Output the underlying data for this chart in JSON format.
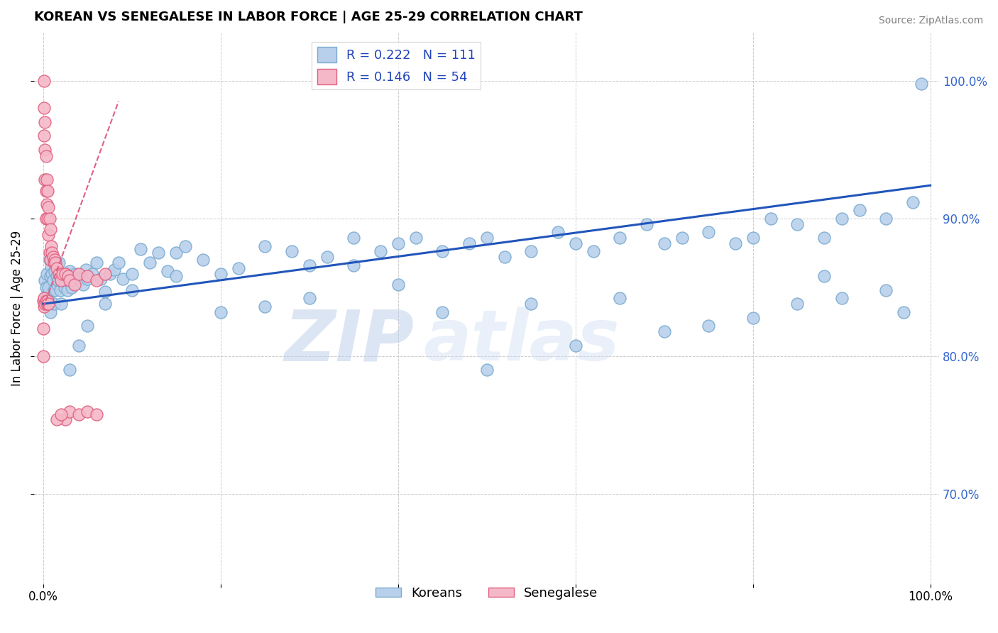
{
  "title": "KOREAN VS SENEGALESE IN LABOR FORCE | AGE 25-29 CORRELATION CHART",
  "source_text": "Source: ZipAtlas.com",
  "xlabel": "",
  "ylabel": "In Labor Force | Age 25-29",
  "xlim": [
    -0.01,
    1.01
  ],
  "ylim": [
    0.635,
    1.035
  ],
  "xticks": [
    0.0,
    0.2,
    0.4,
    0.6,
    0.8,
    1.0
  ],
  "xtick_labels": [
    "0.0%",
    "",
    "",
    "",
    "",
    "100.0%"
  ],
  "yticks": [
    0.7,
    0.8,
    0.9,
    1.0
  ],
  "ytick_labels": [
    "70.0%",
    "80.0%",
    "90.0%",
    "100.0%"
  ],
  "korean_color": "#b8d0eb",
  "senegalese_color": "#f5b8c8",
  "korean_edge_color": "#7aaad0",
  "senegalese_edge_color": "#e06080",
  "trend_korean_color": "#2255bb",
  "trend_senegalese_color": "#cc2244",
  "legend_R_korean": "R = 0.222",
  "legend_N_korean": "N = 111",
  "legend_R_senegalese": "R = 0.146",
  "legend_N_senegalese": "N = 54",
  "watermark_zip": "ZIP",
  "watermark_atlas": "atlas",
  "korean_trend_x": [
    0.0,
    1.0
  ],
  "korean_trend_y": [
    0.838,
    0.924
  ],
  "senegalese_trend_x": [
    0.0,
    0.085
  ],
  "senegalese_trend_y": [
    0.835,
    0.985
  ],
  "background_color": "#ffffff",
  "grid_color": "#cccccc",
  "korean_points_x": [
    0.002,
    0.003,
    0.004,
    0.005,
    0.006,
    0.007,
    0.008,
    0.009,
    0.01,
    0.011,
    0.012,
    0.013,
    0.014,
    0.015,
    0.016,
    0.017,
    0.018,
    0.019,
    0.02,
    0.022,
    0.024,
    0.025,
    0.027,
    0.028,
    0.03,
    0.032,
    0.034,
    0.036,
    0.04,
    0.042,
    0.045,
    0.048,
    0.05,
    0.055,
    0.06,
    0.065,
    0.07,
    0.075,
    0.08,
    0.085,
    0.09,
    0.1,
    0.11,
    0.12,
    0.13,
    0.14,
    0.15,
    0.16,
    0.18,
    0.2,
    0.22,
    0.25,
    0.28,
    0.3,
    0.32,
    0.35,
    0.38,
    0.4,
    0.42,
    0.45,
    0.48,
    0.5,
    0.52,
    0.55,
    0.58,
    0.6,
    0.62,
    0.65,
    0.68,
    0.7,
    0.72,
    0.75,
    0.78,
    0.8,
    0.82,
    0.85,
    0.88,
    0.9,
    0.92,
    0.95,
    0.98,
    0.005,
    0.008,
    0.012,
    0.02,
    0.03,
    0.04,
    0.05,
    0.07,
    0.1,
    0.15,
    0.2,
    0.25,
    0.3,
    0.4,
    0.5,
    0.6,
    0.7,
    0.8,
    0.85,
    0.9,
    0.95,
    0.97,
    0.99,
    0.35,
    0.45,
    0.55,
    0.65,
    0.75,
    0.88
  ],
  "korean_points_y": [
    0.855,
    0.85,
    0.86,
    0.845,
    0.85,
    0.87,
    0.858,
    0.865,
    0.86,
    0.855,
    0.848,
    0.862,
    0.848,
    0.858,
    0.852,
    0.855,
    0.868,
    0.848,
    0.855,
    0.86,
    0.85,
    0.855,
    0.848,
    0.86,
    0.862,
    0.85,
    0.856,
    0.86,
    0.856,
    0.856,
    0.852,
    0.863,
    0.856,
    0.86,
    0.868,
    0.856,
    0.847,
    0.86,
    0.863,
    0.868,
    0.856,
    0.86,
    0.878,
    0.868,
    0.875,
    0.862,
    0.875,
    0.88,
    0.87,
    0.86,
    0.864,
    0.88,
    0.876,
    0.866,
    0.872,
    0.886,
    0.876,
    0.882,
    0.886,
    0.876,
    0.882,
    0.886,
    0.872,
    0.876,
    0.89,
    0.882,
    0.876,
    0.886,
    0.896,
    0.882,
    0.886,
    0.89,
    0.882,
    0.886,
    0.9,
    0.896,
    0.886,
    0.9,
    0.906,
    0.9,
    0.912,
    0.84,
    0.832,
    0.838,
    0.838,
    0.79,
    0.808,
    0.822,
    0.838,
    0.848,
    0.858,
    0.832,
    0.836,
    0.842,
    0.852,
    0.79,
    0.808,
    0.818,
    0.828,
    0.838,
    0.842,
    0.848,
    0.832,
    0.998,
    0.866,
    0.832,
    0.838,
    0.842,
    0.822,
    0.858
  ],
  "senegalese_points_x": [
    0.001,
    0.001,
    0.001,
    0.002,
    0.002,
    0.002,
    0.003,
    0.003,
    0.003,
    0.004,
    0.004,
    0.005,
    0.005,
    0.006,
    0.006,
    0.007,
    0.007,
    0.008,
    0.008,
    0.009,
    0.01,
    0.011,
    0.012,
    0.013,
    0.014,
    0.015,
    0.018,
    0.02,
    0.022,
    0.025,
    0.028,
    0.03,
    0.035,
    0.04,
    0.05,
    0.06,
    0.07,
    0.025,
    0.03,
    0.04,
    0.05,
    0.06,
    0.0,
    0.0,
    0.0,
    0.001,
    0.001,
    0.002,
    0.003,
    0.004,
    0.005,
    0.006,
    0.015,
    0.02
  ],
  "senegalese_points_y": [
    1.0,
    0.98,
    0.96,
    0.97,
    0.95,
    0.928,
    0.945,
    0.92,
    0.9,
    0.928,
    0.91,
    0.92,
    0.9,
    0.908,
    0.888,
    0.9,
    0.875,
    0.892,
    0.87,
    0.88,
    0.875,
    0.872,
    0.868,
    0.87,
    0.868,
    0.864,
    0.86,
    0.855,
    0.86,
    0.86,
    0.858,
    0.855,
    0.852,
    0.86,
    0.858,
    0.855,
    0.86,
    0.754,
    0.76,
    0.758,
    0.76,
    0.758,
    0.84,
    0.82,
    0.8,
    0.842,
    0.836,
    0.838,
    0.84,
    0.838,
    0.84,
    0.838,
    0.754,
    0.758
  ]
}
